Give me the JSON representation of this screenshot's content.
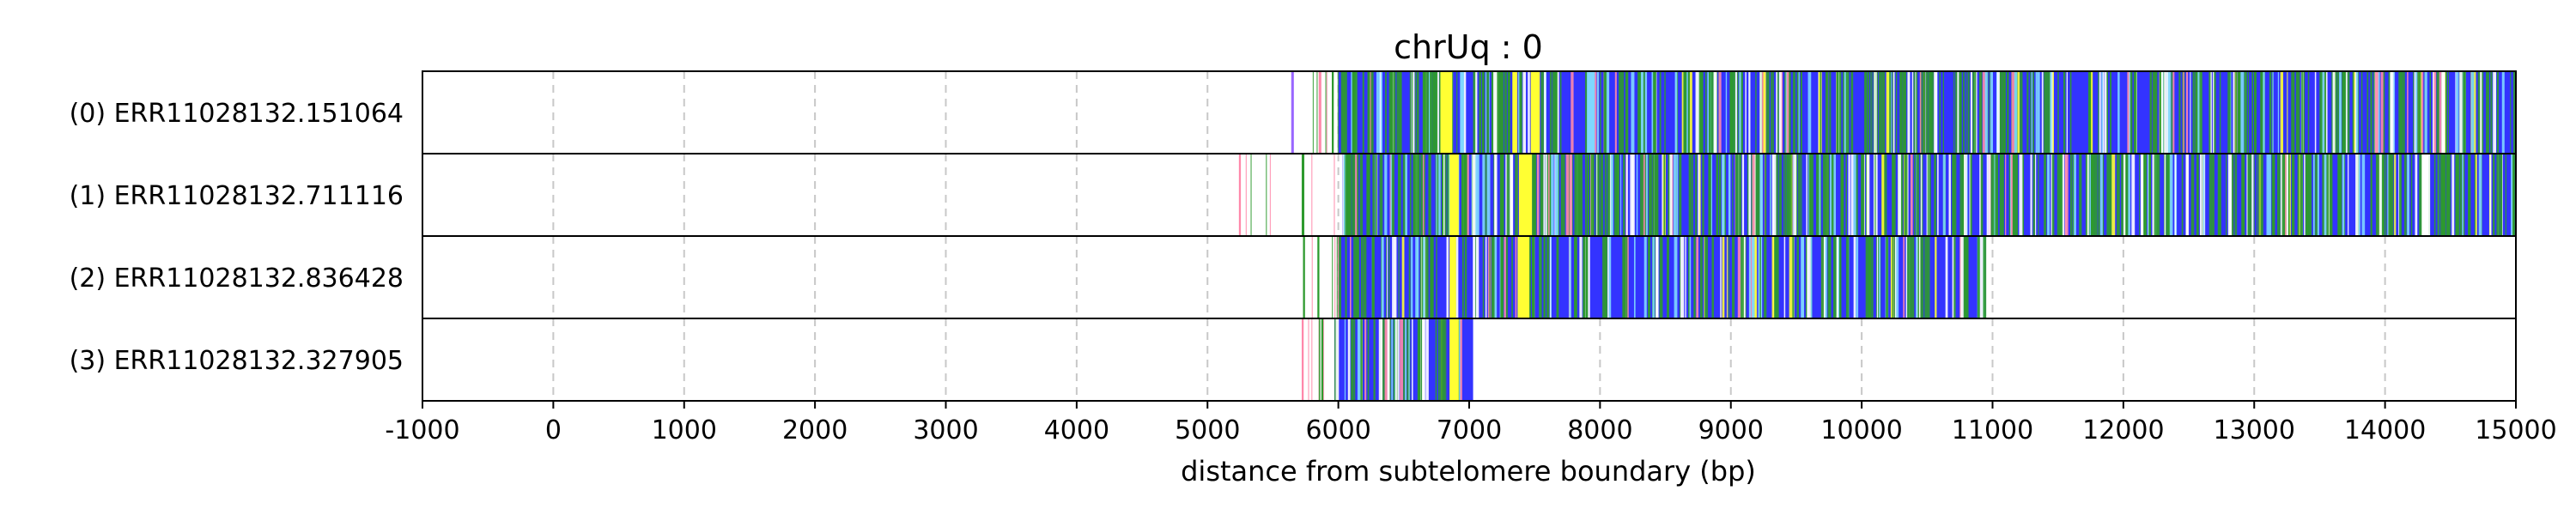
{
  "chart_data": {
    "type": "heatmap",
    "title": "chrUq : 0",
    "xlabel": "distance from subtelomere boundary (bp)",
    "ylabel": "",
    "xlim": [
      -1000,
      15000
    ],
    "xticks": [
      -1000,
      0,
      1000,
      2000,
      3000,
      4000,
      5000,
      6000,
      7000,
      8000,
      9000,
      10000,
      11000,
      12000,
      13000,
      14000,
      15000
    ],
    "xtick_labels": [
      "-1000",
      "0",
      "1000",
      "2000",
      "3000",
      "4000",
      "5000",
      "6000",
      "7000",
      "8000",
      "9000",
      "10000",
      "11000",
      "12000",
      "13000",
      "14000",
      "15000"
    ],
    "grid": "vertical dashed",
    "legend": "none",
    "colors": {
      "main": "#3333ff",
      "green": "#2e9a2e",
      "yellow": "#ffff33",
      "cyan": "#7fd7ff",
      "pink": "#ff88aa",
      "purple": "#9966ff",
      "white": "#ffffff",
      "grid": "#c8c8c8"
    },
    "series": [
      {
        "name": "(0) ERR11028132.151064",
        "start": 5650,
        "dense_start": 6000,
        "end": 15000,
        "features": [
          {
            "x": [
              5640,
              5660
            ],
            "color": "purple"
          },
          {
            "x": [
              5850,
              5870
            ],
            "color": "pink"
          },
          {
            "x": [
              5950,
              5965
            ],
            "color": "green"
          },
          {
            "x": [
              6780,
              6870
            ],
            "color": "yellow"
          },
          {
            "x": [
              6930,
              6960
            ],
            "color": "cyan"
          },
          {
            "x": [
              7330,
              7360
            ],
            "color": "yellow"
          },
          {
            "x": [
              7470,
              7540
            ],
            "color": "yellow"
          },
          {
            "x": [
              7900,
              7960
            ],
            "color": "cyan"
          }
        ],
        "green_density": 0.32
      },
      {
        "name": "(1) ERR11028132.711116",
        "start": 5250,
        "dense_start": 6030,
        "end": 15000,
        "features": [
          {
            "x": [
              5240,
              5255
            ],
            "color": "pink"
          },
          {
            "x": [
              5720,
              5740
            ],
            "color": "green"
          },
          {
            "x": [
              6850,
              6920
            ],
            "color": "yellow"
          },
          {
            "x": [
              7380,
              7480
            ],
            "color": "yellow"
          },
          {
            "x": [
              14280,
              14330
            ],
            "color": "white"
          }
        ],
        "green_density": 0.38
      },
      {
        "name": "(2) ERR11028132.836428",
        "start": 5730,
        "dense_start": 6000,
        "end": 10950,
        "features": [
          {
            "x": [
              5730,
              5745
            ],
            "color": "green"
          },
          {
            "x": [
              5840,
              5855
            ],
            "color": "green"
          },
          {
            "x": [
              6850,
              6900
            ],
            "color": "yellow"
          },
          {
            "x": [
              7370,
              7460
            ],
            "color": "yellow"
          }
        ],
        "green_density": 0.22
      },
      {
        "name": "(3) ERR11028132.327905",
        "start": 5720,
        "dense_start": 5970,
        "end": 7030,
        "features": [
          {
            "x": [
              5720,
              5735
            ],
            "color": "pink"
          },
          {
            "x": [
              5870,
              5885
            ],
            "color": "green"
          },
          {
            "x": [
              6850,
              6920
            ],
            "color": "yellow"
          }
        ],
        "green_density": 0.3
      }
    ]
  }
}
